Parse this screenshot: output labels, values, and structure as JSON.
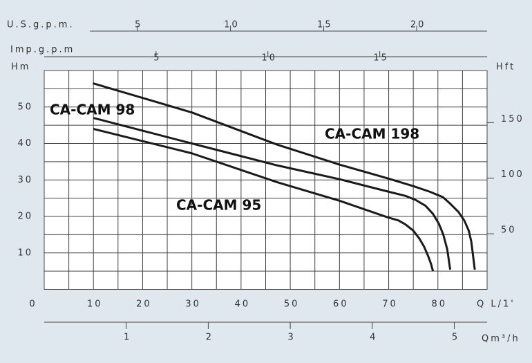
{
  "chart_data": {
    "type": "line",
    "xlabel": "Q L/1'",
    "ylabel": "Hm",
    "y2label": "Hft",
    "xlim": [
      0,
      90
    ],
    "xticks": [
      0,
      10,
      20,
      30,
      40,
      50,
      60,
      70,
      80
    ],
    "xgrid": [
      5,
      10,
      15,
      20,
      25,
      30,
      35,
      40,
      45,
      50,
      55,
      60,
      65,
      70,
      75,
      80,
      85
    ],
    "ylim": [
      0,
      60
    ],
    "yticks": [
      10,
      20,
      30,
      40,
      50
    ],
    "ygrid": [
      5,
      10,
      15,
      20,
      25,
      30,
      35,
      40,
      45,
      50,
      55
    ],
    "y2lim": [
      0,
      196.85
    ],
    "y2ticks": [
      50,
      100,
      150
    ],
    "extra_x_axes": [
      {
        "label": "U.S.g.p.m.",
        "position": "top",
        "xlim": [
          0,
          23.78
        ],
        "xticks": [
          5,
          10,
          15,
          20
        ]
      },
      {
        "label": "Imp.g.p.m",
        "position": "top",
        "xlim": [
          0,
          19.8
        ],
        "xticks": [
          5,
          10,
          15
        ]
      },
      {
        "label": "Qm³/h",
        "position": "bottom",
        "xlim": [
          0,
          5.4
        ],
        "xticks": [
          1,
          2,
          3,
          4,
          5
        ]
      }
    ],
    "grid": true,
    "series": [
      {
        "name": "CA-CAM 198",
        "color": "#1a1a1a",
        "x": [
          9.9,
          30,
          47.3,
          60,
          69.9,
          75,
          78.3,
          81,
          82.5,
          84.2,
          85.4,
          86.3,
          86.8,
          87.5
        ],
        "values": [
          56.5,
          48.5,
          39.7,
          34.2,
          30.4,
          28.3,
          26.8,
          25.3,
          23.5,
          21.2,
          18.8,
          16,
          13,
          5.4
        ]
      },
      {
        "name": "CA-CAM 98",
        "color": "#1a1a1a",
        "x": [
          10,
          30,
          47.3,
          60,
          69.9,
          73.5,
          75.5,
          77.5,
          79,
          80.2,
          81.1,
          81.9,
          82.5
        ],
        "values": [
          47,
          40,
          34,
          30.2,
          26.8,
          25.6,
          24.5,
          22.9,
          20.7,
          18,
          15,
          11,
          5.4
        ]
      },
      {
        "name": "CA-CAM 95",
        "color": "#1a1a1a",
        "x": [
          10,
          30,
          47.3,
          60,
          69.9,
          72,
          73.4,
          75,
          76.2,
          77.2,
          78,
          78.6,
          79
        ],
        "values": [
          44,
          37.3,
          29.4,
          24.3,
          19.7,
          18.9,
          17.8,
          16.1,
          14,
          11.7,
          9.2,
          7,
          5
        ]
      }
    ]
  }
}
